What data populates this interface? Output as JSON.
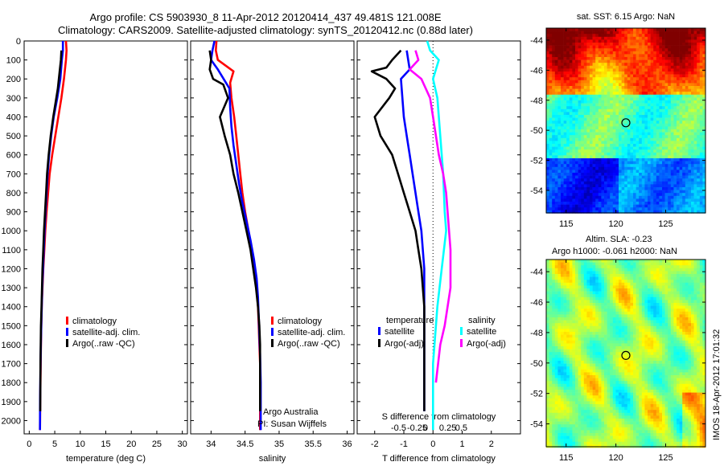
{
  "header": {
    "line1": "Argo profile: CS 5903930_8 11-Apr-2012 20120414_437 49.481S 121.008E",
    "line2": "Climatology: CARS2009. Satellite-adjusted climatology: synTS_20120412.nc (0.88d later)"
  },
  "colors": {
    "climatology": "#ff0000",
    "satellite": "#0000ff",
    "argo": "#000000",
    "sat_salinity": "#00ffff",
    "argo_salinity": "#ff00ff"
  },
  "chart_data": [
    {
      "type": "line",
      "xlabel": "temperature (deg C)",
      "xlim": [
        -1,
        31
      ],
      "ylim": [
        2070,
        0
      ],
      "x_ticks": [
        0,
        5,
        10,
        15,
        20,
        25,
        30
      ],
      "y_ticks": [
        0,
        100,
        200,
        300,
        400,
        500,
        600,
        700,
        800,
        900,
        1000,
        1100,
        1200,
        1300,
        1400,
        1500,
        1600,
        1700,
        1800,
        1900,
        2000
      ],
      "series": [
        {
          "name": "climatology",
          "color": "#ff0000",
          "x": [
            7.2,
            7.3,
            7.2,
            6.8,
            6.3,
            5.7,
            5.1,
            4.5,
            4.0,
            3.7,
            3.4,
            3.15,
            2.95,
            2.75,
            2.6,
            2.45,
            2.35,
            2.3,
            2.25,
            2.2,
            2.15,
            2.1
          ],
          "y": [
            0,
            50,
            100,
            200,
            300,
            400,
            500,
            600,
            700,
            800,
            900,
            1000,
            1100,
            1200,
            1300,
            1400,
            1500,
            1600,
            1700,
            1800,
            1900,
            2050
          ]
        },
        {
          "name": "satellite-adj. clim.",
          "color": "#0000ff",
          "x": [
            6.6,
            6.6,
            6.4,
            6.1,
            5.5,
            4.8,
            4.3,
            3.9,
            3.6,
            3.4,
            3.2,
            3.0,
            2.85,
            2.7,
            2.55,
            2.45,
            2.35,
            2.28,
            2.22,
            2.17,
            2.12,
            2.1
          ],
          "y": [
            0,
            50,
            100,
            200,
            300,
            400,
            500,
            600,
            700,
            800,
            900,
            1000,
            1100,
            1200,
            1300,
            1400,
            1500,
            1600,
            1700,
            1800,
            1900,
            2050
          ]
        },
        {
          "name": "Argo(..raw -QC)",
          "color": "#000000",
          "x": [
            6.3,
            6.2,
            6.0,
            5.6,
            4.7,
            4.2,
            3.8,
            3.5,
            3.3,
            3.1,
            2.9,
            2.75,
            2.6,
            2.5,
            2.4,
            2.3,
            2.25,
            2.2,
            2.18,
            2.15
          ],
          "y": [
            50,
            100,
            150,
            250,
            400,
            500,
            600,
            700,
            800,
            900,
            1000,
            1100,
            1200,
            1300,
            1400,
            1500,
            1600,
            1700,
            1800,
            1950
          ]
        }
      ],
      "legend": [
        "climatology",
        "satellite-adj. clim.",
        "Argo(..raw -QC)"
      ]
    },
    {
      "type": "line",
      "xlabel": "salinity",
      "xlim": [
        33.7,
        36.1
      ],
      "ylim": [
        2070,
        0
      ],
      "x_ticks": [
        34,
        34.5,
        35,
        35.5,
        36
      ],
      "x_tick_labels": [
        "34",
        "34.5",
        "35",
        "35.5",
        "36"
      ],
      "series": [
        {
          "name": "climatology",
          "color": "#ff0000",
          "x": [
            34.08,
            34.07,
            34.1,
            34.33,
            34.28,
            34.3,
            34.34,
            34.37,
            34.4,
            34.43,
            34.46,
            34.5,
            34.55,
            34.6,
            34.64,
            34.67,
            34.69,
            34.7,
            34.71,
            34.72,
            34.72,
            34.72
          ],
          "y": [
            0,
            50,
            100,
            160,
            220,
            300,
            400,
            500,
            600,
            700,
            800,
            900,
            1000,
            1100,
            1200,
            1300,
            1400,
            1500,
            1600,
            1700,
            1850,
            2050
          ]
        },
        {
          "name": "satellite-adj. clim.",
          "color": "#0000ff",
          "x": [
            34.05,
            34.02,
            34.0,
            34.1,
            34.27,
            34.28,
            34.3,
            34.33,
            34.37,
            34.41,
            34.46,
            34.52,
            34.58,
            34.63,
            34.67,
            34.69,
            34.7,
            34.71,
            34.72,
            34.73,
            34.73
          ],
          "y": [
            0,
            50,
            100,
            150,
            250,
            350,
            450,
            550,
            650,
            750,
            850,
            950,
            1050,
            1150,
            1250,
            1350,
            1450,
            1550,
            1650,
            1800,
            2050
          ]
        },
        {
          "name": "Argo(..raw -QC)",
          "color": "#000000",
          "x": [
            33.98,
            34.0,
            33.98,
            34.03,
            34.18,
            34.25,
            34.13,
            34.2,
            34.28,
            34.33,
            34.4,
            34.46,
            34.52,
            34.58,
            34.62,
            34.66,
            34.69,
            34.71,
            34.72,
            34.72,
            34.72
          ],
          "y": [
            50,
            100,
            150,
            200,
            230,
            300,
            400,
            500,
            600,
            700,
            800,
            900,
            1000,
            1100,
            1200,
            1300,
            1400,
            1500,
            1600,
            1700,
            1950
          ]
        }
      ],
      "legend": [
        "climatology",
        "satellite-adj. clim.",
        "Argo(..raw -QC)"
      ],
      "annotations": [
        "Argo Australia",
        "PI: Susan Wijffels"
      ]
    },
    {
      "type": "line",
      "xlabel": "T difference from climatology",
      "top_label": "S difference from climatology",
      "xlim": [
        -2.6,
        3.0
      ],
      "ylim": [
        2070,
        0
      ],
      "x_ticks": [
        -2,
        -1,
        0,
        1,
        2
      ],
      "s_tick_labels": [
        "-0.5",
        "-0.25",
        "0",
        "0.25",
        "0.5"
      ],
      "series": [
        {
          "name": "satellite",
          "group": "temperature",
          "color": "#0000ff",
          "x": [
            -0.9,
            -0.85,
            -0.8,
            -1.1,
            -1.05,
            -1.0,
            -0.9,
            -0.8,
            -0.7,
            -0.6,
            -0.5,
            -0.4,
            -0.35,
            -0.3,
            -0.3,
            -0.3,
            -0.3,
            -0.3,
            -0.3,
            -0.3
          ],
          "y": [
            50,
            100,
            150,
            200,
            300,
            400,
            500,
            600,
            700,
            800,
            900,
            1000,
            1100,
            1200,
            1300,
            1400,
            1500,
            1600,
            1800,
            1950
          ]
        },
        {
          "name": "Argo(-adj)",
          "group": "temperature",
          "color": "#000000",
          "x": [
            -1.1,
            -1.4,
            -1.6,
            -2.1,
            -1.6,
            -1.3,
            -1.5,
            -2.0,
            -1.8,
            -1.4,
            -1.2,
            -1.0,
            -0.8,
            -0.6,
            -0.5,
            -0.4,
            -0.35,
            -0.3,
            -0.3,
            -0.3,
            -0.3
          ],
          "y": [
            50,
            100,
            140,
            160,
            200,
            250,
            300,
            400,
            500,
            600,
            700,
            800,
            900,
            1000,
            1100,
            1200,
            1300,
            1400,
            1500,
            1700,
            1950
          ]
        },
        {
          "name": "satellite",
          "group": "salinity",
          "color": "#00ffff",
          "x": [
            -0.2,
            -0.1,
            0.2,
            0.1,
            0.0,
            0.15,
            0.2,
            0.25,
            0.3,
            0.35,
            0.4,
            0.45,
            0.3,
            0.15,
            0.05,
            0.0,
            0.0,
            0.0,
            0.0
          ],
          "y": [
            0,
            50,
            100,
            150,
            200,
            300,
            400,
            500,
            600,
            700,
            900,
            1000,
            1200,
            1400,
            1600,
            1700,
            1800,
            1900,
            2050
          ]
        },
        {
          "name": "Argo(-adj)",
          "group": "salinity",
          "color": "#ff00ff",
          "x": [
            -0.6,
            -0.5,
            -0.8,
            -0.4,
            -0.1,
            0.0,
            0.1,
            0.2,
            0.35,
            0.45,
            0.55,
            0.6,
            0.6,
            0.5,
            0.4,
            0.25,
            0.1
          ],
          "y": [
            50,
            100,
            150,
            200,
            300,
            400,
            500,
            600,
            700,
            800,
            1000,
            1100,
            1300,
            1400,
            1500,
            1600,
            1800
          ]
        }
      ],
      "legend_groups": [
        {
          "title": "temperature",
          "items": [
            "satellite",
            "Argo(-adj)"
          ]
        },
        {
          "title": "salinity",
          "items": [
            "satellite",
            "Argo(-adj)"
          ]
        }
      ]
    },
    {
      "type": "heatmap",
      "title": "sat. SST: 6.15 Argo: NaN",
      "x_ticks": [
        115,
        120,
        125
      ],
      "y_ticks": [
        -44,
        -46,
        -48,
        -50,
        -52,
        -54
      ],
      "xlim": [
        113,
        129
      ],
      "ylim": [
        -55.5,
        -43.2
      ],
      "marker": {
        "lon": 121.0,
        "lat": -49.5
      },
      "colorscale": "jet"
    },
    {
      "type": "heatmap",
      "title_lines": [
        "Altim. SLA: -0.23",
        "Argo h1000: -0.061 h2000: NaN"
      ],
      "x_ticks": [
        115,
        120,
        125
      ],
      "y_ticks": [
        -44,
        -46,
        -48,
        -50,
        -52,
        -54
      ],
      "xlim": [
        113,
        129
      ],
      "ylim": [
        -55.5,
        -43.2
      ],
      "marker": {
        "lon": 121.0,
        "lat": -49.5
      },
      "colorscale": "jet"
    }
  ],
  "side_stamp": "IMOS 18-Apr-2012 17:01:32"
}
